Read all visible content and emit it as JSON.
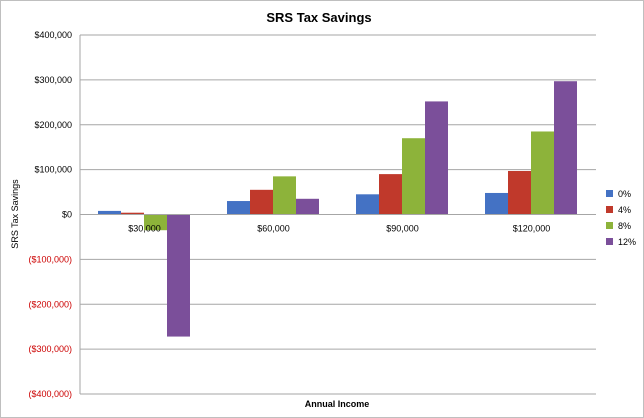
{
  "chart_data": {
    "type": "bar",
    "title": "SRS Tax Savings",
    "xlabel": "Annual Income",
    "ylabel": "SRS Tax Savings",
    "categories": [
      "$30,000",
      "$60,000",
      "$90,000",
      "$120,000"
    ],
    "series": [
      {
        "name": "0%",
        "color": "#4472c4",
        "values": [
          8000,
          30000,
          45000,
          48000
        ]
      },
      {
        "name": "4%",
        "color": "#c0392b",
        "values": [
          4000,
          55000,
          90000,
          97000
        ]
      },
      {
        "name": "8%",
        "color": "#8db33a",
        "values": [
          -35000,
          85000,
          170000,
          185000
        ]
      },
      {
        "name": "12%",
        "color": "#7b4f9a",
        "values": [
          -272000,
          35000,
          252000,
          297000
        ]
      }
    ],
    "ylim": [
      -400000,
      400000
    ],
    "yticks": [
      400000,
      300000,
      200000,
      100000,
      0,
      -100000,
      -200000,
      -300000,
      -400000
    ],
    "ytick_labels": [
      "$400,000",
      "$300,000",
      "$200,000",
      "$100,000",
      "$0",
      "($100,000)",
      "($200,000)",
      "($300,000)",
      "($400,000)"
    ],
    "negative_label_color": "#cc0000",
    "grid": true,
    "legend_position": "right"
  }
}
